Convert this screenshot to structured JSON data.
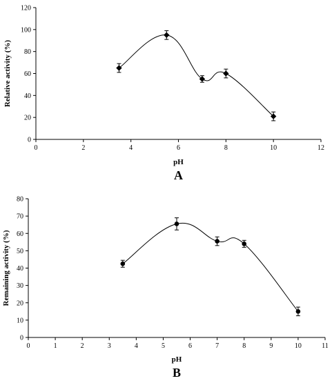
{
  "chart_data": [
    {
      "type": "scatter",
      "panel_label": "A",
      "xlabel": "pH",
      "ylabel": "Relative activity (%)",
      "xlim": [
        0,
        12
      ],
      "ylim": [
        0,
        120
      ],
      "x_ticks": [
        0,
        2,
        4,
        6,
        8,
        10,
        12
      ],
      "y_ticks": [
        0,
        20,
        40,
        60,
        80,
        100,
        120
      ],
      "grid": false,
      "marker": "diamond",
      "smooth_line": true,
      "color": "#000000",
      "series": [
        {
          "x": [
            3.5,
            5.5,
            7,
            8,
            10
          ],
          "y": [
            65,
            95,
            55,
            60,
            21
          ],
          "error": [
            4,
            4,
            3,
            4,
            4
          ]
        }
      ]
    },
    {
      "type": "scatter",
      "panel_label": "B",
      "xlabel": "pH",
      "ylabel": "Remaining activity (%)",
      "xlim": [
        0,
        11
      ],
      "ylim": [
        0,
        80
      ],
      "x_ticks": [
        0,
        1,
        2,
        3,
        4,
        5,
        6,
        7,
        8,
        9,
        10,
        11
      ],
      "y_ticks": [
        0,
        10,
        20,
        30,
        40,
        50,
        60,
        70,
        80
      ],
      "grid": false,
      "marker": "circle",
      "smooth_line": true,
      "color": "#000000",
      "series": [
        {
          "x": [
            3.5,
            5.5,
            7,
            8,
            10
          ],
          "y": [
            42.5,
            65.5,
            55.5,
            54,
            15
          ],
          "error": [
            2,
            3.5,
            2.5,
            2,
            2.5
          ]
        }
      ]
    }
  ]
}
